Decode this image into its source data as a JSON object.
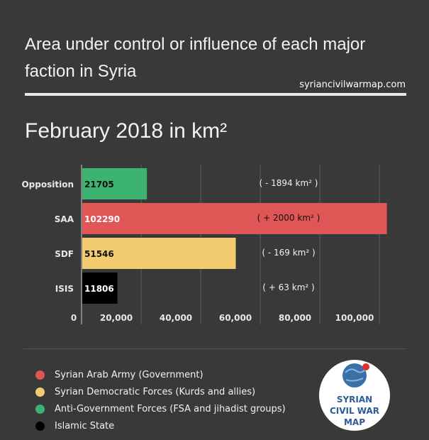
{
  "title": "Area under control or influence of each major faction in Syria",
  "source": "syriancivilwarmap.com",
  "subtitle": "February 2018 in km²",
  "chart_data": {
    "type": "bar",
    "orientation": "horizontal",
    "categories": [
      "Opposition",
      "SAA",
      "SDF",
      "ISIS"
    ],
    "values": [
      21705,
      102290,
      51546,
      11806
    ],
    "value_labels": [
      "21705",
      "102290",
      "51546",
      "11806"
    ],
    "changes": [
      "( - 1894 km² )",
      "( + 2000 km² )",
      "( - 169 km² )",
      "( + 63 km² )"
    ],
    "colors": [
      "#3cb371",
      "#e05555",
      "#f2cc6e",
      "#000000"
    ],
    "label_colors": [
      "#111111",
      "#ffffff",
      "#111111",
      "#ffffff"
    ],
    "xticks": [
      0,
      20000,
      40000,
      60000,
      80000,
      100000
    ],
    "xtick_labels": [
      "0",
      "20,000",
      "40,000",
      "60,000",
      "80,000",
      "100,000"
    ],
    "xlim": [
      0,
      100000
    ],
    "grid": true
  },
  "legend": [
    {
      "label": "Syrian Arab Army (Government)",
      "color": "#e05555"
    },
    {
      "label": "Syrian Democratic Forces (Kurds and allies)",
      "color": "#f2cc6e"
    },
    {
      "label": "Anti-Government Forces (FSA and jihadist groups)",
      "color": "#3cb371"
    },
    {
      "label": "Islamic State",
      "color": "#000000"
    }
  ],
  "logo": {
    "lines": [
      "SYRIAN",
      "CIVIL WAR",
      "MAP"
    ]
  }
}
